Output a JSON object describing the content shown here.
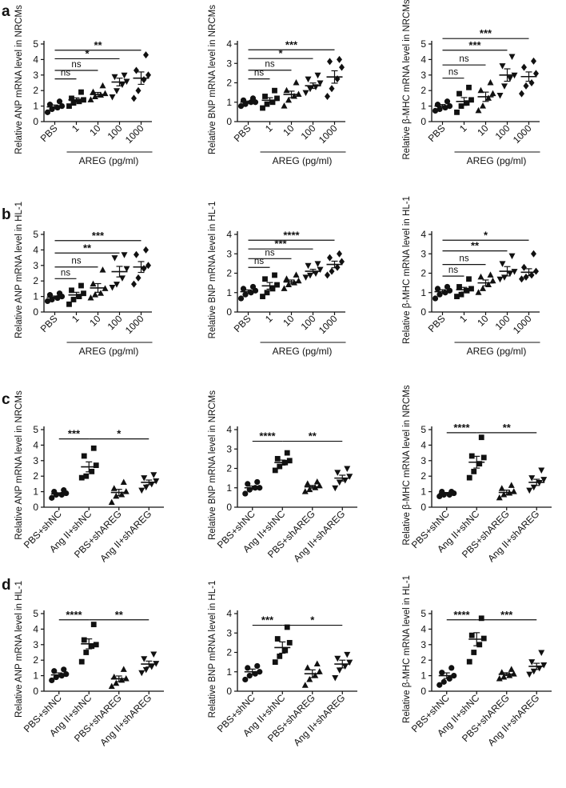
{
  "panel_labels": [
    "a",
    "b",
    "c",
    "d"
  ],
  "chart_data": [
    {
      "type": "scatter",
      "panel": "a",
      "ylabel": "Relative ANP mRNA level in NRCMs",
      "ylim": [
        0,
        5
      ],
      "yticks": [
        "0",
        "1",
        "2",
        "3",
        "4",
        "5"
      ],
      "categories": [
        "PBS",
        "1",
        "10",
        "100",
        "1000"
      ],
      "xgroup_label": "AREG (pg/ml)",
      "xgroup_span": [
        1,
        4
      ],
      "markers": [
        "circle",
        "square",
        "triangle",
        "invtriangle",
        "diamond"
      ],
      "points": [
        [
          0.6,
          0.8,
          0.9,
          1.0,
          1.1,
          1.3
        ],
        [
          1.0,
          1.2,
          1.3,
          1.4,
          1.5,
          1.9
        ],
        [
          1.4,
          1.6,
          1.7,
          1.8,
          1.9,
          2.3
        ],
        [
          1.6,
          2.0,
          2.4,
          2.6,
          2.9,
          3.0
        ],
        [
          1.5,
          2.0,
          2.7,
          3.0,
          3.3,
          4.3
        ]
      ],
      "means": [
        0.95,
        1.4,
        1.75,
        2.55,
        2.8
      ],
      "sems": [
        0.12,
        0.13,
        0.13,
        0.25,
        0.4
      ],
      "brackets": [
        {
          "from": 0,
          "to": 1,
          "label": "ns",
          "y": 2.75
        },
        {
          "from": 0,
          "to": 2,
          "label": "ns",
          "y": 3.3
        },
        {
          "from": 0,
          "to": 3,
          "label": "*",
          "y": 4.05
        },
        {
          "from": 0,
          "to": 4,
          "label": "**",
          "y": 4.6
        }
      ]
    },
    {
      "type": "scatter",
      "panel": "a",
      "ylabel": "Relative BNP mRNA level in NRCMs",
      "ylim": [
        0,
        4
      ],
      "yticks": [
        "0",
        "1",
        "2",
        "3",
        "4"
      ],
      "categories": [
        "PBS",
        "1",
        "10",
        "100",
        "1000"
      ],
      "xgroup_label": "AREG (pg/ml)",
      "xgroup_span": [
        1,
        4
      ],
      "markers": [
        "circle",
        "square",
        "triangle",
        "invtriangle",
        "diamond"
      ],
      "points": [
        [
          0.8,
          0.9,
          1.0,
          1.0,
          1.1,
          1.2
        ],
        [
          0.7,
          0.9,
          1.0,
          1.2,
          1.3,
          1.6
        ],
        [
          0.8,
          1.1,
          1.3,
          1.4,
          1.6,
          2.0
        ],
        [
          1.5,
          1.7,
          1.8,
          2.0,
          2.2,
          2.4
        ],
        [
          1.3,
          1.7,
          2.2,
          2.8,
          3.1,
          3.2
        ]
      ],
      "means": [
        1.0,
        1.1,
        1.4,
        1.85,
        2.3
      ],
      "sems": [
        0.06,
        0.13,
        0.17,
        0.14,
        0.32
      ],
      "brackets": [
        {
          "from": 0,
          "to": 1,
          "label": "ns",
          "y": 2.2
        },
        {
          "from": 0,
          "to": 2,
          "label": "ns",
          "y": 2.65
        },
        {
          "from": 0,
          "to": 3,
          "label": "*",
          "y": 3.25
        },
        {
          "from": 0,
          "to": 4,
          "label": "***",
          "y": 3.7
        }
      ]
    },
    {
      "type": "scatter",
      "panel": "a",
      "ylabel": "Relative β-MHC mRNA level in NRCMs",
      "ylim": [
        0,
        5
      ],
      "yticks": [
        "0",
        "1",
        "2",
        "3",
        "4",
        "5"
      ],
      "categories": [
        "PBS",
        "1",
        "10",
        "100",
        "1000"
      ],
      "xgroup_label": "AREG (pg/ml)",
      "xgroup_span": [
        1,
        4
      ],
      "markers": [
        "circle",
        "square",
        "triangle",
        "invtriangle",
        "diamond"
      ],
      "points": [
        [
          0.7,
          0.8,
          0.9,
          1.0,
          1.1,
          1.3
        ],
        [
          0.6,
          1.0,
          1.2,
          1.4,
          1.8,
          2.2
        ],
        [
          0.7,
          1.0,
          1.5,
          1.8,
          2.0,
          2.5
        ],
        [
          1.7,
          2.3,
          2.8,
          3.0,
          3.6,
          4.2
        ],
        [
          1.8,
          2.3,
          2.5,
          3.1,
          3.5,
          3.9
        ]
      ],
      "means": [
        1.0,
        1.3,
        1.6,
        3.0,
        2.9
      ],
      "sems": [
        0.1,
        0.25,
        0.3,
        0.4,
        0.3
      ],
      "brackets": [
        {
          "from": 0,
          "to": 1,
          "label": "ns",
          "y": 2.8
        },
        {
          "from": 0,
          "to": 2,
          "label": "ns",
          "y": 3.65
        },
        {
          "from": 0,
          "to": 3,
          "label": "***",
          "y": 4.6
        },
        {
          "from": 0,
          "to": 4,
          "label": "***",
          "y": 5.35
        }
      ]
    },
    {
      "type": "scatter",
      "panel": "b",
      "ylabel": "Relative ANP mRNA level in HL-1",
      "ylim": [
        0,
        5
      ],
      "yticks": [
        "0",
        "1",
        "2",
        "3",
        "4",
        "5"
      ],
      "categories": [
        "PBS",
        "1",
        "10",
        "100",
        "1000"
      ],
      "xgroup_label": "AREG (pg/ml)",
      "xgroup_span": [
        1,
        4
      ],
      "markers": [
        "circle",
        "square",
        "triangle",
        "invtriangle",
        "diamond"
      ],
      "points": [
        [
          0.7,
          0.8,
          0.9,
          1.0,
          1.1,
          1.2
        ],
        [
          0.5,
          0.8,
          1.0,
          1.2,
          1.4,
          1.7
        ],
        [
          0.9,
          1.1,
          1.2,
          1.5,
          1.8,
          2.7
        ],
        [
          1.6,
          1.8,
          2.2,
          2.8,
          3.5,
          3.7
        ],
        [
          1.8,
          2.2,
          2.8,
          3.0,
          3.7,
          4.0
        ]
      ],
      "means": [
        0.95,
        1.1,
        1.55,
        2.6,
        2.9
      ],
      "sems": [
        0.08,
        0.17,
        0.28,
        0.34,
        0.35
      ],
      "brackets": [
        {
          "from": 0,
          "to": 1,
          "label": "ns",
          "y": 2.15
        },
        {
          "from": 0,
          "to": 2,
          "label": "ns",
          "y": 2.9
        },
        {
          "from": 0,
          "to": 3,
          "label": "**",
          "y": 3.8
        },
        {
          "from": 0,
          "to": 4,
          "label": "***",
          "y": 4.6
        }
      ]
    },
    {
      "type": "scatter",
      "panel": "b",
      "ylabel": "Relative BNP mRNA level in HL-1",
      "ylim": [
        0,
        4
      ],
      "yticks": [
        "0",
        "1",
        "2",
        "3",
        "4"
      ],
      "categories": [
        "PBS",
        "1",
        "10",
        "100",
        "1000"
      ],
      "xgroup_label": "AREG (pg/ml)",
      "xgroup_span": [
        1,
        4
      ],
      "markers": [
        "circle",
        "square",
        "triangle",
        "invtriangle",
        "diamond"
      ],
      "points": [
        [
          0.7,
          0.9,
          1.0,
          1.1,
          1.2,
          1.3
        ],
        [
          0.8,
          1.0,
          1.2,
          1.4,
          1.7,
          1.9
        ],
        [
          1.2,
          1.4,
          1.5,
          1.6,
          1.7,
          1.9
        ],
        [
          1.8,
          1.9,
          2.0,
          2.2,
          2.4,
          2.5
        ],
        [
          1.9,
          2.1,
          2.3,
          2.6,
          2.8,
          3.0
        ]
      ],
      "means": [
        1.05,
        1.35,
        1.55,
        2.1,
        2.45
      ],
      "sems": [
        0.09,
        0.17,
        0.1,
        0.1,
        0.17
      ],
      "brackets": [
        {
          "from": 0,
          "to": 1,
          "label": "ns",
          "y": 2.3
        },
        {
          "from": 0,
          "to": 2,
          "label": "ns",
          "y": 2.75
        },
        {
          "from": 0,
          "to": 3,
          "label": "***",
          "y": 3.25
        },
        {
          "from": 0,
          "to": 4,
          "label": "****",
          "y": 3.7
        }
      ]
    },
    {
      "type": "scatter",
      "panel": "b",
      "ylabel": "Relative β-MHC mRNA level in HL-1",
      "ylim": [
        0,
        4
      ],
      "yticks": [
        "0",
        "1",
        "2",
        "3",
        "4"
      ],
      "categories": [
        "PBS",
        "1",
        "10",
        "100",
        "1000"
      ],
      "xgroup_label": "AREG (pg/ml)",
      "xgroup_span": [
        1,
        4
      ],
      "markers": [
        "circle",
        "square",
        "triangle",
        "invtriangle",
        "diamond"
      ],
      "points": [
        [
          0.7,
          0.9,
          1.0,
          1.1,
          1.2,
          1.3
        ],
        [
          0.8,
          0.9,
          1.1,
          1.2,
          1.3,
          1.7
        ],
        [
          1.0,
          1.2,
          1.4,
          1.6,
          1.8,
          1.9
        ],
        [
          1.7,
          1.8,
          2.0,
          2.1,
          2.5,
          2.9
        ],
        [
          1.7,
          1.8,
          1.9,
          2.1,
          2.3,
          3.0
        ]
      ],
      "means": [
        1.05,
        1.15,
        1.5,
        2.1,
        2.05
      ],
      "sems": [
        0.1,
        0.12,
        0.15,
        0.24,
        0.18
      ],
      "brackets": [
        {
          "from": 0,
          "to": 1,
          "label": "ns",
          "y": 1.85
        },
        {
          "from": 0,
          "to": 2,
          "label": "ns",
          "y": 2.45
        },
        {
          "from": 0,
          "to": 3,
          "label": "**",
          "y": 3.15
        },
        {
          "from": 0,
          "to": 4,
          "label": "*",
          "y": 3.7
        }
      ]
    },
    {
      "type": "scatter",
      "panel": "c",
      "ylabel": "Relative ANP mRNA level in NRCMs",
      "ylim": [
        0,
        5
      ],
      "yticks": [
        "0",
        "1",
        "2",
        "3",
        "4",
        "5"
      ],
      "categories": [
        "PBS+shNC",
        "Ang II+shNC",
        "PBS+shAREG",
        "Ang II+shAREG"
      ],
      "markers": [
        "circle",
        "square",
        "triangle",
        "invtriangle"
      ],
      "points": [
        [
          0.6,
          0.8,
          0.8,
          0.9,
          1.0,
          1.1
        ],
        [
          1.9,
          2.0,
          2.3,
          2.7,
          3.3,
          3.8
        ],
        [
          0.3,
          0.7,
          0.8,
          1.0,
          1.2,
          1.6
        ],
        [
          1.1,
          1.3,
          1.5,
          1.7,
          1.9,
          2.1
        ]
      ],
      "means": [
        0.85,
        2.6,
        0.95,
        1.6
      ],
      "sems": [
        0.08,
        0.32,
        0.2,
        0.15
      ],
      "brackets": [
        {
          "from": 0,
          "to": 1,
          "label": "***",
          "y": 4.4
        },
        {
          "from": 1,
          "to": 3,
          "label": "*",
          "y": 4.4
        }
      ]
    },
    {
      "type": "scatter",
      "panel": "c",
      "ylabel": "Relative BNP mRNA level in NRCMs",
      "ylim": [
        0,
        4
      ],
      "yticks": [
        "0",
        "1",
        "2",
        "3",
        "4"
      ],
      "categories": [
        "PBS+shNC",
        "Ang II+shNC",
        "PBS+shAREG",
        "Ang II+shAREG"
      ],
      "markers": [
        "circle",
        "square",
        "triangle",
        "invtriangle"
      ],
      "points": [
        [
          0.7,
          0.9,
          1.0,
          1.0,
          1.2,
          1.3
        ],
        [
          1.9,
          2.1,
          2.3,
          2.4,
          2.5,
          2.8
        ],
        [
          0.8,
          0.9,
          1.0,
          1.1,
          1.2,
          1.3
        ],
        [
          1.0,
          1.3,
          1.4,
          1.6,
          1.8,
          2.0
        ]
      ],
      "means": [
        1.0,
        2.3,
        1.05,
        1.5
      ],
      "sems": [
        0.09,
        0.13,
        0.07,
        0.15
      ],
      "brackets": [
        {
          "from": 0,
          "to": 1,
          "label": "****",
          "y": 3.4
        },
        {
          "from": 1,
          "to": 3,
          "label": "**",
          "y": 3.4
        }
      ]
    },
    {
      "type": "scatter",
      "panel": "c",
      "ylabel": "Relative β-MHC mRNA level in NRCMs",
      "ylim": [
        0,
        5
      ],
      "yticks": [
        "0",
        "1",
        "2",
        "3",
        "4",
        "5"
      ],
      "categories": [
        "PBS+shNC",
        "Ang II+shNC",
        "PBS+shAREG",
        "Ang II+shAREG"
      ],
      "markers": [
        "circle",
        "square",
        "triangle",
        "invtriangle"
      ],
      "points": [
        [
          0.7,
          0.8,
          0.8,
          0.9,
          1.0,
          1.0
        ],
        [
          1.9,
          2.3,
          2.8,
          3.2,
          3.3,
          4.5
        ],
        [
          0.6,
          0.8,
          0.9,
          1.0,
          1.2,
          1.4
        ],
        [
          1.1,
          1.3,
          1.6,
          1.8,
          1.9,
          2.4
        ]
      ],
      "means": [
        0.9,
        2.9,
        0.95,
        1.6
      ],
      "sems": [
        0.05,
        0.38,
        0.15,
        0.2
      ],
      "brackets": [
        {
          "from": 0,
          "to": 1,
          "label": "****",
          "y": 4.8
        },
        {
          "from": 1,
          "to": 3,
          "label": "**",
          "y": 4.8
        }
      ]
    },
    {
      "type": "scatter",
      "panel": "d",
      "ylabel": "Relative ANP mRNA level in HL-1",
      "ylim": [
        0,
        5
      ],
      "yticks": [
        "0",
        "1",
        "2",
        "3",
        "4",
        "5"
      ],
      "categories": [
        "PBS+shNC",
        "Ang II+shNC",
        "PBS+shAREG",
        "Ang II+shAREG"
      ],
      "markers": [
        "circle",
        "square",
        "triangle",
        "invtriangle"
      ],
      "points": [
        [
          0.7,
          0.9,
          1.0,
          1.1,
          1.3,
          1.4
        ],
        [
          1.9,
          2.5,
          2.9,
          3.0,
          3.3,
          4.3
        ],
        [
          0.3,
          0.5,
          0.7,
          0.8,
          0.9,
          1.4
        ],
        [
          1.2,
          1.4,
          1.6,
          1.8,
          2.1,
          2.4
        ]
      ],
      "means": [
        1.05,
        3.05,
        0.8,
        1.75
      ],
      "sems": [
        0.13,
        0.32,
        0.18,
        0.19
      ],
      "brackets": [
        {
          "from": 0,
          "to": 1,
          "label": "****",
          "y": 4.6
        },
        {
          "from": 1,
          "to": 3,
          "label": "**",
          "y": 4.6
        }
      ]
    },
    {
      "type": "scatter",
      "panel": "d",
      "ylabel": "Relative BNP mRNA level in HL-1",
      "ylim": [
        0,
        4
      ],
      "yticks": [
        "0",
        "1",
        "2",
        "3",
        "4"
      ],
      "categories": [
        "PBS+shNC",
        "Ang II+shNC",
        "PBS+shAREG",
        "Ang II+shAREG"
      ],
      "markers": [
        "circle",
        "square",
        "triangle",
        "invtriangle"
      ],
      "points": [
        [
          0.6,
          0.8,
          0.9,
          1.0,
          1.2,
          1.3
        ],
        [
          1.5,
          1.8,
          2.1,
          2.5,
          2.7,
          3.3
        ],
        [
          0.3,
          0.6,
          0.8,
          1.0,
          1.2,
          1.4
        ],
        [
          0.7,
          1.1,
          1.3,
          1.5,
          1.7,
          1.9
        ]
      ],
      "means": [
        1.0,
        2.25,
        0.9,
        1.4
      ],
      "sems": [
        0.14,
        0.29,
        0.2,
        0.2
      ],
      "brackets": [
        {
          "from": 0,
          "to": 1,
          "label": "***",
          "y": 3.4
        },
        {
          "from": 1,
          "to": 3,
          "label": "*",
          "y": 3.4
        }
      ]
    },
    {
      "type": "scatter",
      "panel": "d",
      "ylabel": "Relative β-MHC mRNA level in HL-1",
      "ylim": [
        0,
        5
      ],
      "yticks": [
        "0",
        "1",
        "2",
        "3",
        "4",
        "5"
      ],
      "categories": [
        "PBS+shNC",
        "Ang II+shNC",
        "PBS+shAREG",
        "Ang II+shAREG"
      ],
      "markers": [
        "circle",
        "square",
        "triangle",
        "invtriangle"
      ],
      "points": [
        [
          0.4,
          0.6,
          0.8,
          1.0,
          1.2,
          1.5
        ],
        [
          1.9,
          2.5,
          3.0,
          3.4,
          3.6,
          4.7
        ],
        [
          0.8,
          0.9,
          1.0,
          1.1,
          1.2,
          1.4
        ],
        [
          1.1,
          1.3,
          1.5,
          1.7,
          1.9,
          2.5
        ]
      ],
      "means": [
        1.0,
        3.35,
        1.1,
        1.6
      ],
      "sems": [
        0.18,
        0.42,
        0.09,
        0.2
      ],
      "brackets": [
        {
          "from": 0,
          "to": 1,
          "label": "****",
          "y": 4.6
        },
        {
          "from": 1,
          "to": 3,
          "label": "***",
          "y": 4.6
        }
      ]
    }
  ]
}
